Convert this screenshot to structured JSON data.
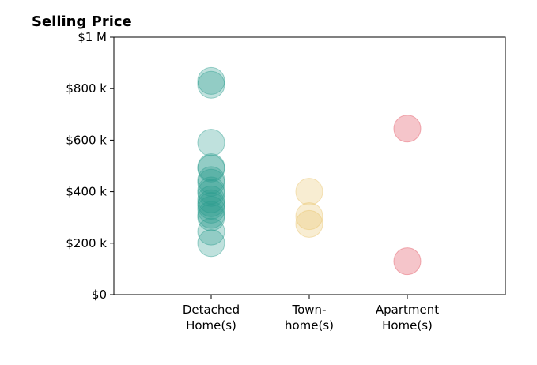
{
  "chart_data": {
    "type": "scatter",
    "title": "Selling Price",
    "xlabel": "",
    "ylabel": "",
    "ylim": [
      0,
      1000000
    ],
    "y_ticks": [
      {
        "value": 0,
        "label": "$0"
      },
      {
        "value": 200000,
        "label": "$200 k"
      },
      {
        "value": 400000,
        "label": "$400 k"
      },
      {
        "value": 600000,
        "label": "$600 k"
      },
      {
        "value": 800000,
        "label": "$800 k"
      },
      {
        "value": 1000000,
        "label": "$1 M"
      }
    ],
    "categories": [
      {
        "lines": [
          "Detached",
          "Home(s)"
        ]
      },
      {
        "lines": [
          "Town-",
          "home(s)"
        ]
      },
      {
        "lines": [
          "Apartment",
          "Home(s)"
        ]
      }
    ],
    "grid": false,
    "legend": "none",
    "series": [
      {
        "category_index": 0,
        "color": "#2a9d8f",
        "opacity": 0.3,
        "values": [
          830000,
          815000,
          590000,
          495000,
          490000,
          445000,
          435000,
          405000,
          395000,
          370000,
          355000,
          345000,
          330000,
          310000,
          300000,
          245000,
          200000
        ]
      },
      {
        "category_index": 1,
        "color": "#e9c46a",
        "opacity": 0.3,
        "values": [
          400000,
          305000,
          275000
        ]
      },
      {
        "category_index": 2,
        "color": "#e76f7a",
        "opacity": 0.4,
        "values": [
          645000,
          130000
        ]
      }
    ]
  }
}
